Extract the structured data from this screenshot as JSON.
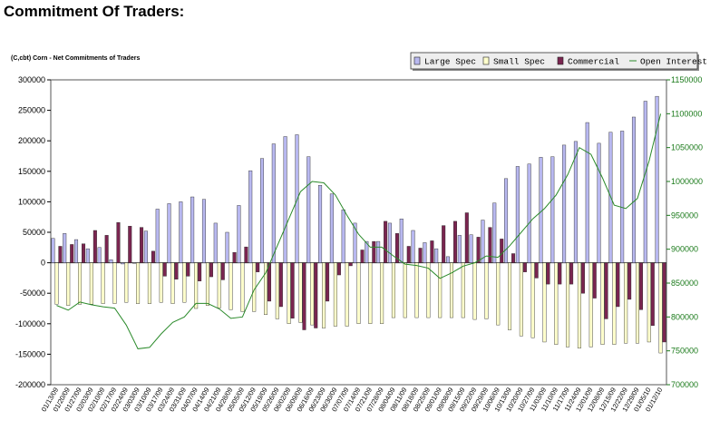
{
  "page": {
    "title": "Commitment Of Traders:"
  },
  "chart_data": {
    "type": "bar",
    "title": "(C,cbt) Corn - Net Commitments of Traders",
    "left_axis": {
      "min": -200000,
      "max": 300000,
      "step": 50000,
      "tick_labels": [
        "-200000",
        "-150000",
        "-100000",
        "-50000",
        "0",
        "50000",
        "100000",
        "150000",
        "200000",
        "250000",
        "300000"
      ]
    },
    "right_axis": {
      "min": 700000,
      "max": 1150000,
      "step": 50000,
      "tick_labels": [
        "700000",
        "750000",
        "800000",
        "850000",
        "900000",
        "950000",
        "1000000",
        "1050000",
        "1100000",
        "1150000"
      ]
    },
    "categories": [
      "01/13/09",
      "01/20/09",
      "01/27/09",
      "02/03/09",
      "02/10/09",
      "02/17/09",
      "02/24/09",
      "03/03/09",
      "03/10/09",
      "03/17/09",
      "03/24/09",
      "03/31/09",
      "04/07/09",
      "04/14/09",
      "04/21/09",
      "04/28/09",
      "05/05/09",
      "05/12/09",
      "05/19/09",
      "05/26/09",
      "06/02/09",
      "06/09/09",
      "06/16/09",
      "06/23/09",
      "06/30/09",
      "07/07/09",
      "07/14/09",
      "07/21/09",
      "07/28/09",
      "08/04/09",
      "08/11/09",
      "08/18/09",
      "08/25/09",
      "09/01/09",
      "09/08/09",
      "09/15/09",
      "09/22/09",
      "09/29/09",
      "10/06/09",
      "10/13/09",
      "10/20/09",
      "10/27/09",
      "11/03/09",
      "11/10/09",
      "11/17/09",
      "11/24/09",
      "12/01/09",
      "12/08/09",
      "12/15/09",
      "12/22/09",
      "12/29/09",
      "01/05/10",
      "01/12/10"
    ],
    "series": [
      {
        "name": "Large Spec",
        "color": "#b8b8f0",
        "values": [
          40000,
          48000,
          38000,
          23000,
          25000,
          5000,
          -2000,
          0,
          52000,
          88000,
          97000,
          100000,
          108000,
          104000,
          65000,
          50000,
          94000,
          151000,
          171000,
          195000,
          207000,
          210000,
          174000,
          127000,
          113000,
          87000,
          65000,
          35000,
          35000,
          65000,
          72000,
          53000,
          33000,
          23000,
          10000,
          45000,
          46000,
          70000,
          98000,
          138000,
          158000,
          162000,
          173000,
          174000,
          193000,
          199000,
          230000,
          196000,
          214000,
          216000,
          239000,
          265000,
          273000
        ]
      },
      {
        "name": "Small Spec",
        "color": "#ffffcc",
        "values": [
          -68000,
          -70000,
          -68000,
          -68000,
          -67000,
          -67000,
          -65000,
          -67000,
          -67000,
          -65000,
          -67000,
          -65000,
          -75000,
          -70000,
          -74000,
          -77000,
          -80000,
          -80000,
          -85000,
          -92000,
          -100000,
          -98000,
          -102000,
          -107000,
          -104000,
          -104000,
          -100000,
          -100000,
          -100000,
          -90000,
          -90000,
          -90000,
          -90000,
          -90000,
          -90000,
          -90000,
          -93000,
          -92000,
          -102000,
          -110000,
          -120000,
          -123000,
          -130000,
          -134000,
          -138000,
          -140000,
          -138000,
          -134000,
          -134000,
          -132000,
          -132000,
          -130000,
          -148000
        ]
      },
      {
        "name": "Commercial",
        "color": "#7a2550",
        "values": [
          27000,
          30000,
          31000,
          53000,
          45000,
          66000,
          60000,
          58000,
          19000,
          -22000,
          -27000,
          -22000,
          -30000,
          -23000,
          -28000,
          17000,
          26000,
          -15000,
          -63000,
          -72000,
          -91000,
          -110000,
          -107000,
          -63000,
          -20000,
          -5000,
          21000,
          35000,
          68000,
          48000,
          27000,
          24000,
          36000,
          61000,
          68000,
          82000,
          42000,
          58000,
          39000,
          15000,
          -15000,
          -25000,
          -35000,
          -35000,
          -35000,
          -50000,
          -58000,
          -92000,
          -72000,
          -60000,
          -77000,
          -103000,
          -130000
        ]
      },
      {
        "name": "Open Interest",
        "color": "#2a8a2a",
        "values": [
          817000,
          810000,
          822000,
          818000,
          815000,
          813000,
          788000,
          753000,
          755000,
          775000,
          792000,
          800000,
          820000,
          820000,
          812000,
          798000,
          800000,
          840000,
          865000,
          905000,
          945000,
          985000,
          1000000,
          998000,
          980000,
          950000,
          922000,
          903000,
          903000,
          890000,
          878000,
          876000,
          872000,
          857000,
          865000,
          875000,
          880000,
          890000,
          888000,
          905000,
          925000,
          945000,
          960000,
          980000,
          1010000,
          1050000,
          1040000,
          1005000,
          965000,
          960000,
          975000,
          1030000,
          1100000
        ]
      }
    ],
    "legend": {
      "position": "top-right",
      "entries": [
        "Large Spec",
        "Small Spec",
        "Commercial",
        "Open Interest"
      ]
    },
    "grid": false
  }
}
